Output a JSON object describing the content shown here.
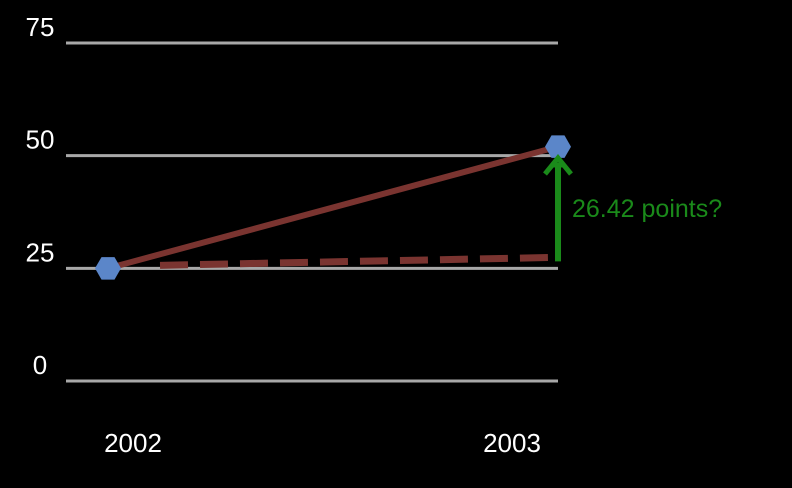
{
  "chart_data": {
    "type": "line",
    "x": [
      "2002",
      "2003"
    ],
    "yticks": [
      0,
      25,
      50,
      75
    ],
    "ylim": [
      0,
      75
    ],
    "grid": true,
    "series": [
      {
        "values": [
          25,
          52
        ],
        "color": "#7a3430"
      }
    ],
    "reference_line": {
      "from": 25,
      "to": 27,
      "style": "dashed",
      "color": "#7a3430"
    },
    "annotation": {
      "text": "26.42 points?",
      "from": 27,
      "to": 52,
      "color": "#1a8a1a"
    },
    "marker_color": "#5b86c9",
    "grid_color": "#a8a8a8",
    "text_color": "#ffffff"
  }
}
